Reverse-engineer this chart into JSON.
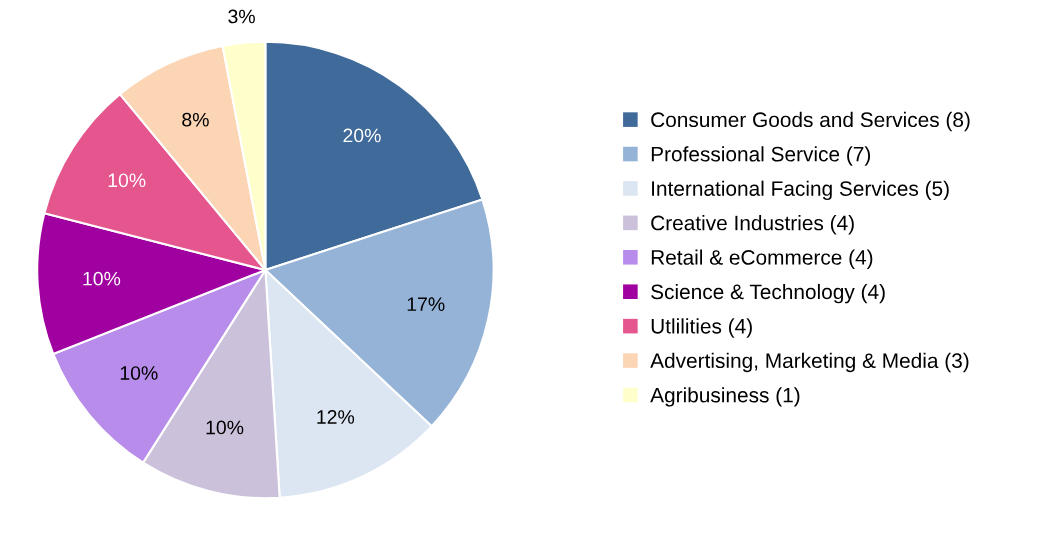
{
  "chart_data": {
    "type": "pie",
    "categories": [
      "Consumer Goods and Services (8)",
      "Professional Service (7)",
      "International Facing Services (5)",
      "Creative Industries (4)",
      "Retail & eCommerce (4)",
      "Science & Technology (4)",
      "Utlilities (4)",
      "Advertising, Marketing & Media (3)",
      "Agribusiness (1)"
    ],
    "values": [
      20,
      17,
      12,
      10,
      10,
      10,
      10,
      8,
      3
    ],
    "value_labels": [
      "20%",
      "17%",
      "12%",
      "10%",
      "10%",
      "10%",
      "10%",
      "8%",
      "3%"
    ],
    "colors": [
      "#3f6a9a",
      "#95b3d7",
      "#dce6f2",
      "#ccc1da",
      "#b88cea",
      "#a000a0",
      "#e5568f",
      "#fcd5b5",
      "#ffffcc"
    ],
    "legend": "right"
  }
}
